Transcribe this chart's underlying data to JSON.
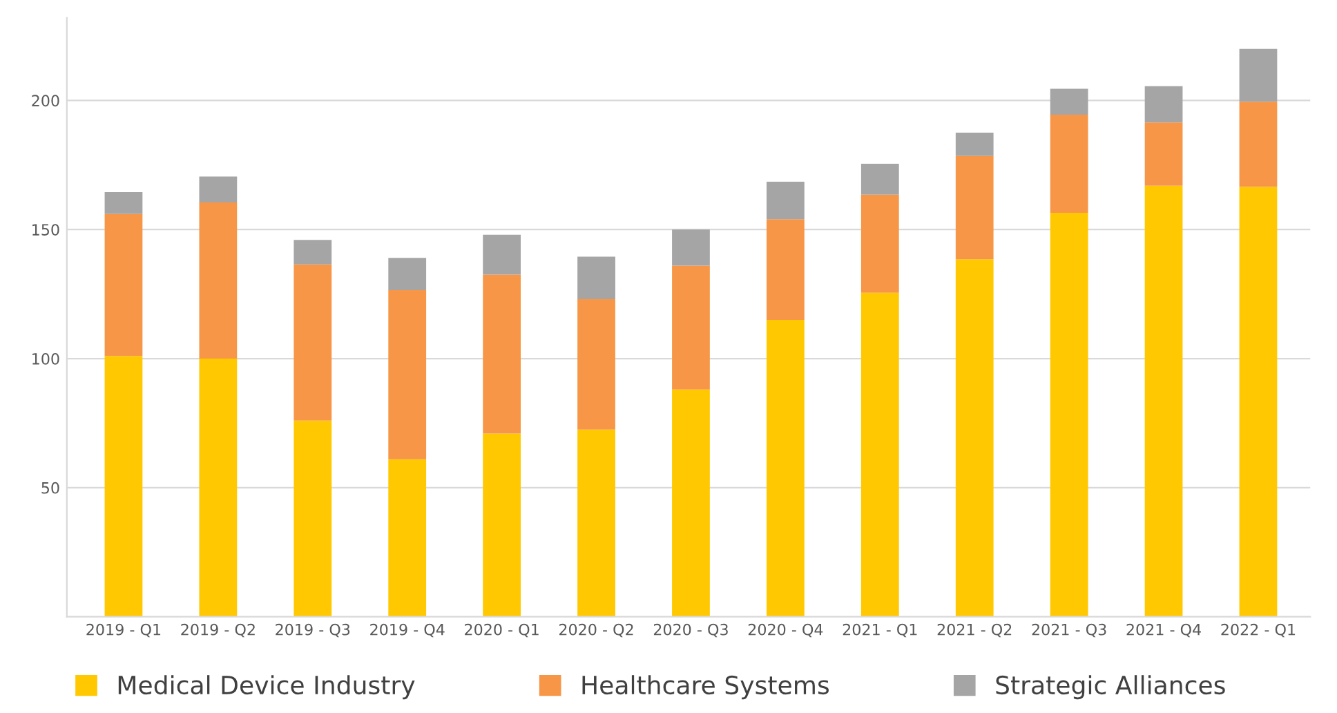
{
  "chart_data": {
    "type": "bar",
    "stacked": true,
    "categories": [
      "2019 - Q1",
      "2019 - Q2",
      "2019 - Q3",
      "2019 - Q4",
      "2020 - Q1",
      "2020 - Q2",
      "2020 - Q3",
      "2020 - Q4",
      "2021 - Q1",
      "2021 - Q2",
      "2021 - Q3",
      "2021 - Q4",
      "2022 - Q1"
    ],
    "series": [
      {
        "name": "Medical Device Industry",
        "color": "#ffc800",
        "values": [
          101,
          100,
          76,
          61,
          71,
          72.5,
          88,
          115,
          125.5,
          138.5,
          156.5,
          167,
          166.5
        ]
      },
      {
        "name": "Healthcare Systems",
        "color": "#f79646",
        "values": [
          55,
          60.5,
          60.5,
          65.5,
          61.5,
          50.5,
          48,
          39,
          38,
          40,
          38,
          24.5,
          33
        ]
      },
      {
        "name": "Strategic Alliances",
        "color": "#a5a5a5",
        "values": [
          8.5,
          10,
          9.5,
          12.5,
          15.5,
          16.5,
          14,
          14.5,
          12,
          9,
          10,
          14,
          20.5
        ]
      }
    ],
    "ylim": [
      0,
      232
    ],
    "yticks": [
      50,
      100,
      150,
      200
    ],
    "grid": "y",
    "legend": "bottom"
  }
}
